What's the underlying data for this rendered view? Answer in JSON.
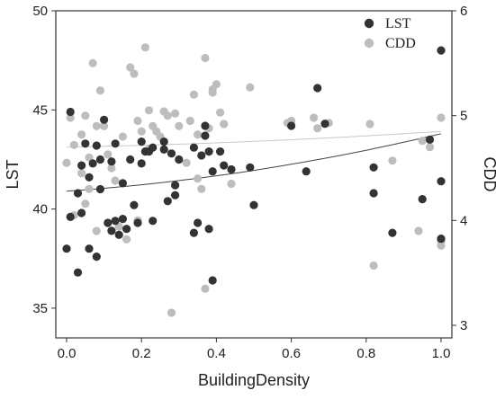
{
  "chart_data": {
    "type": "scatter",
    "xlabel": "BuildingDensity",
    "ylabel_left": "LST",
    "ylabel_right": "CDD",
    "xlim": [
      0,
      1.0
    ],
    "ylim_left": [
      33.5,
      50
    ],
    "ylim_right": [
      2.88,
      6
    ],
    "xticks": [
      "0.0",
      "0.2",
      "0.4",
      "0.6",
      "0.8",
      "1.0"
    ],
    "yticks_left": [
      "35",
      "40",
      "45",
      "50"
    ],
    "yticks_right": [
      "3",
      "4",
      "5",
      "6"
    ],
    "grid": false,
    "legend_position": "top-right",
    "colors": {
      "LST": "#333333",
      "CDD": "#bdbdbd"
    },
    "series": [
      {
        "name": "LST",
        "axis": "left",
        "points": [
          [
            0.01,
            44.9
          ],
          [
            0.0,
            38.0
          ],
          [
            0.01,
            39.6
          ],
          [
            0.03,
            36.8
          ],
          [
            0.03,
            40.8
          ],
          [
            0.04,
            39.8
          ],
          [
            0.04,
            42.2
          ],
          [
            0.05,
            43.3
          ],
          [
            0.06,
            41.6
          ],
          [
            0.06,
            38.0
          ],
          [
            0.07,
            42.3
          ],
          [
            0.08,
            37.6
          ],
          [
            0.08,
            43.2
          ],
          [
            0.09,
            41.0
          ],
          [
            0.09,
            42.5
          ],
          [
            0.1,
            44.5
          ],
          [
            0.11,
            39.3
          ],
          [
            0.12,
            38.9
          ],
          [
            0.12,
            42.4
          ],
          [
            0.13,
            39.4
          ],
          [
            0.13,
            43.3
          ],
          [
            0.14,
            38.7
          ],
          [
            0.15,
            39.5
          ],
          [
            0.15,
            41.3
          ],
          [
            0.16,
            39.0
          ],
          [
            0.17,
            42.5
          ],
          [
            0.18,
            40.2
          ],
          [
            0.19,
            39.3
          ],
          [
            0.2,
            42.3
          ],
          [
            0.2,
            43.4
          ],
          [
            0.21,
            42.9
          ],
          [
            0.22,
            42.9
          ],
          [
            0.23,
            43.1
          ],
          [
            0.23,
            39.4
          ],
          [
            0.26,
            43.0
          ],
          [
            0.26,
            43.4
          ],
          [
            0.27,
            40.4
          ],
          [
            0.28,
            42.8
          ],
          [
            0.29,
            41.2
          ],
          [
            0.29,
            40.7
          ],
          [
            0.3,
            42.5
          ],
          [
            0.34,
            38.8
          ],
          [
            0.34,
            43.1
          ],
          [
            0.35,
            39.3
          ],
          [
            0.36,
            42.7
          ],
          [
            0.37,
            44.2
          ],
          [
            0.37,
            43.7
          ],
          [
            0.38,
            42.9
          ],
          [
            0.38,
            39.0
          ],
          [
            0.39,
            36.4
          ],
          [
            0.39,
            41.9
          ],
          [
            0.41,
            42.9
          ],
          [
            0.42,
            42.2
          ],
          [
            0.44,
            42.0
          ],
          [
            0.49,
            42.1
          ],
          [
            0.5,
            40.2
          ],
          [
            0.6,
            44.2
          ],
          [
            0.64,
            41.9
          ],
          [
            0.67,
            46.1
          ],
          [
            0.69,
            44.3
          ],
          [
            0.82,
            42.1
          ],
          [
            0.82,
            40.8
          ],
          [
            0.87,
            38.8
          ],
          [
            0.95,
            40.5
          ],
          [
            0.97,
            43.5
          ],
          [
            1.0,
            48.0
          ],
          [
            1.0,
            41.4
          ],
          [
            1.0,
            38.5
          ]
        ]
      },
      {
        "name": "CDD",
        "axis": "right",
        "points": [
          [
            0.01,
            4.98
          ],
          [
            0.0,
            4.55
          ],
          [
            0.02,
            4.72
          ],
          [
            0.02,
            4.05
          ],
          [
            0.04,
            4.45
          ],
          [
            0.04,
            4.82
          ],
          [
            0.05,
            5.0
          ],
          [
            0.05,
            4.16
          ],
          [
            0.06,
            4.3
          ],
          [
            0.06,
            4.6
          ],
          [
            0.07,
            5.5
          ],
          [
            0.08,
            4.9
          ],
          [
            0.08,
            3.9
          ],
          [
            0.09,
            5.24
          ],
          [
            0.1,
            4.9
          ],
          [
            0.11,
            4.63
          ],
          [
            0.12,
            4.5
          ],
          [
            0.13,
            4.38
          ],
          [
            0.14,
            3.94
          ],
          [
            0.15,
            4.8
          ],
          [
            0.16,
            3.82
          ],
          [
            0.17,
            5.46
          ],
          [
            0.18,
            5.4
          ],
          [
            0.19,
            4.0
          ],
          [
            0.19,
            4.95
          ],
          [
            0.2,
            4.85
          ],
          [
            0.21,
            5.65
          ],
          [
            0.22,
            5.05
          ],
          [
            0.22,
            4.68
          ],
          [
            0.23,
            4.9
          ],
          [
            0.24,
            4.85
          ],
          [
            0.25,
            4.8
          ],
          [
            0.26,
            5.04
          ],
          [
            0.27,
            5.0
          ],
          [
            0.28,
            3.12
          ],
          [
            0.29,
            5.02
          ],
          [
            0.3,
            4.9
          ],
          [
            0.32,
            4.55
          ],
          [
            0.33,
            4.95
          ],
          [
            0.34,
            5.2
          ],
          [
            0.35,
            4.82
          ],
          [
            0.35,
            4.4
          ],
          [
            0.36,
            4.3
          ],
          [
            0.37,
            5.55
          ],
          [
            0.37,
            3.35
          ],
          [
            0.38,
            4.88
          ],
          [
            0.39,
            5.25
          ],
          [
            0.39,
            5.22
          ],
          [
            0.4,
            5.3
          ],
          [
            0.41,
            5.03
          ],
          [
            0.42,
            4.92
          ],
          [
            0.44,
            4.35
          ],
          [
            0.49,
            5.27
          ],
          [
            0.59,
            4.93
          ],
          [
            0.6,
            4.95
          ],
          [
            0.66,
            4.98
          ],
          [
            0.67,
            4.88
          ],
          [
            0.7,
            4.93
          ],
          [
            0.81,
            4.92
          ],
          [
            0.82,
            3.57
          ],
          [
            0.87,
            4.57
          ],
          [
            0.94,
            3.9
          ],
          [
            0.97,
            4.7
          ],
          [
            1.0,
            4.98
          ],
          [
            1.0,
            3.8
          ],
          [
            1.0,
            3.76
          ],
          [
            1.0,
            3.83
          ],
          [
            0.95,
            4.76
          ]
        ]
      }
    ],
    "fits": [
      {
        "series": "LST",
        "axis": "left",
        "x0": 0.0,
        "y0": 40.9,
        "x1": 1.0,
        "y1": 43.8,
        "color": "#444444"
      },
      {
        "series": "CDD",
        "axis": "right",
        "x0": 0.0,
        "y0": 4.7,
        "x1": 1.0,
        "y1": 4.85,
        "color": "#c8c8c8"
      }
    ]
  }
}
